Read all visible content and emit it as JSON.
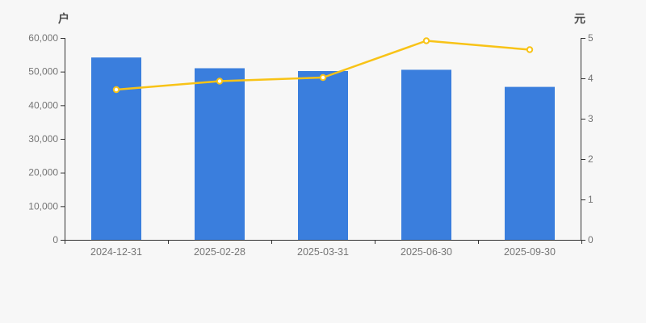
{
  "page": {
    "background_color": "#f7f7f7"
  },
  "chart_data": {
    "type": "bar+line",
    "title": "",
    "categories": [
      "2024-12-31",
      "2025-02-28",
      "2025-03-31",
      "2025-06-30",
      "2025-09-30"
    ],
    "series": [
      {
        "name": "households-bars",
        "type": "bar",
        "axis": "left",
        "color": "#3a7edd",
        "values": [
          54200,
          51000,
          50150,
          50550,
          45450
        ]
      },
      {
        "name": "yuan-line",
        "type": "line",
        "axis": "right",
        "color": "#f8c317",
        "marker": "empty-circle",
        "marker_fill": "#ffffff",
        "values": [
          3.72,
          3.93,
          4.02,
          4.93,
          4.71
        ]
      }
    ],
    "left_axis": {
      "name": "户",
      "min": 0,
      "max": 60000,
      "tick_labels": [
        "0",
        "10,000",
        "20,000",
        "30,000",
        "40,000",
        "50,000",
        "60,000"
      ]
    },
    "right_axis": {
      "name": "元",
      "min": 0,
      "max": 5,
      "tick_labels": [
        "0",
        "1",
        "2",
        "3",
        "4",
        "5"
      ]
    },
    "grid": false,
    "legend": null,
    "style": {
      "axis_line_color": "#333333",
      "tick_label_color": "#757575",
      "axis_name_color": "#4a4a4a"
    }
  }
}
